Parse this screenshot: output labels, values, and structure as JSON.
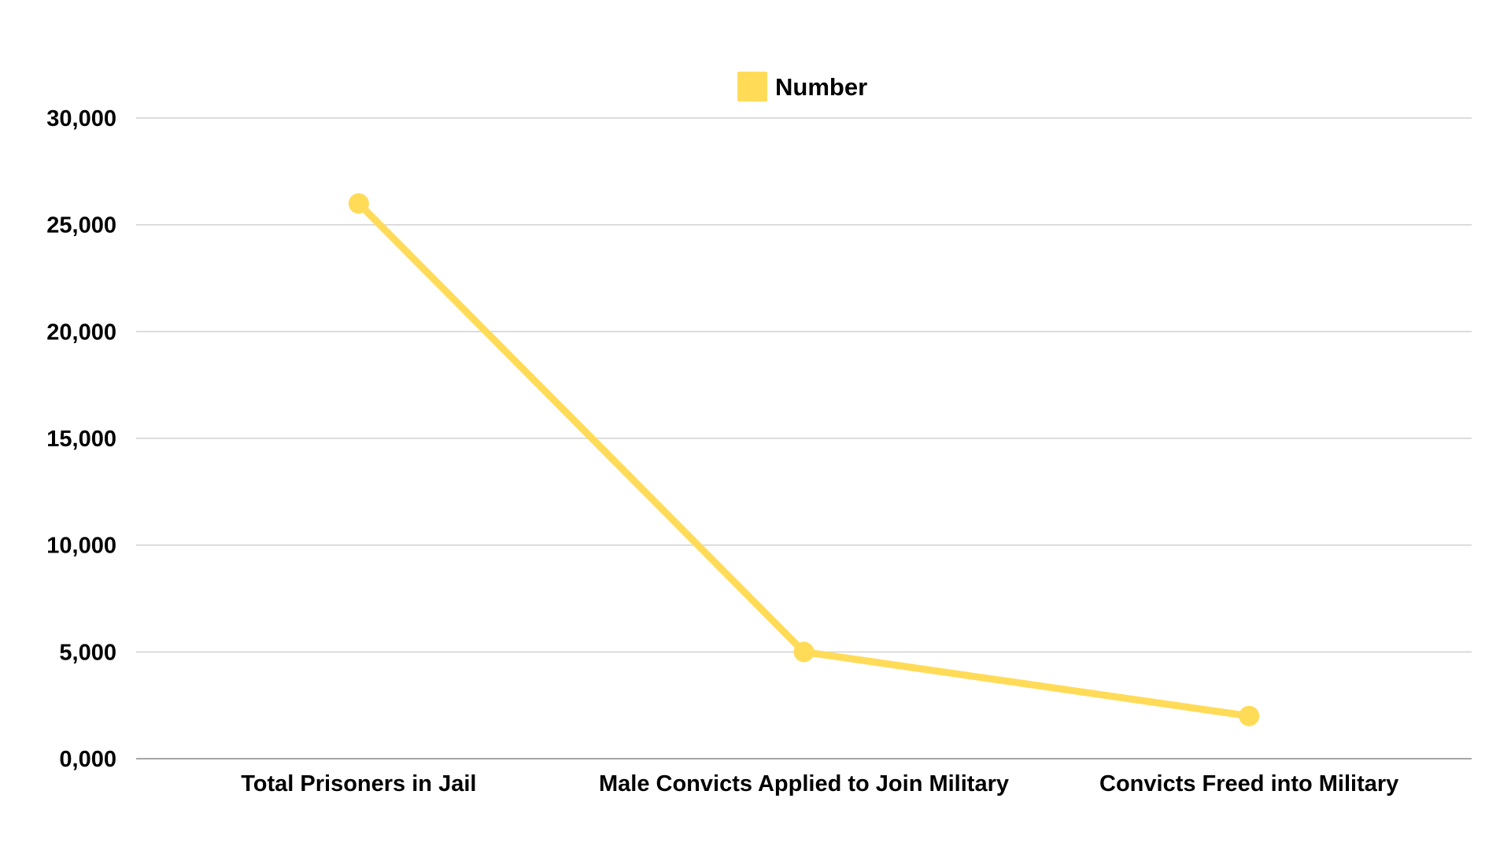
{
  "legend": {
    "label": "Number",
    "color": "#FFDB58"
  },
  "colors": {
    "series": "#FFDB58",
    "grid": "#D0D0D0",
    "axis": "#888888",
    "text": "#000000"
  },
  "chart_data": {
    "type": "line",
    "title": "",
    "xlabel": "",
    "ylabel": "",
    "categories": [
      "Total Prisoners in Jail",
      "Male Convicts Applied to Join Military",
      "Convicts Freed into Military"
    ],
    "series": [
      {
        "name": "Number",
        "values": [
          26000,
          5000,
          2000
        ],
        "color": "#FFDB58"
      }
    ],
    "ylim": [
      0,
      30000
    ],
    "yticks": [
      0,
      5000,
      10000,
      15000,
      20000,
      25000,
      30000
    ],
    "ytick_labels": [
      "0,000",
      "5,000",
      "10,000",
      "15,000",
      "20,000",
      "25,000",
      "30,000"
    ],
    "grid": true,
    "legend_position": "top-center",
    "markers": true
  }
}
